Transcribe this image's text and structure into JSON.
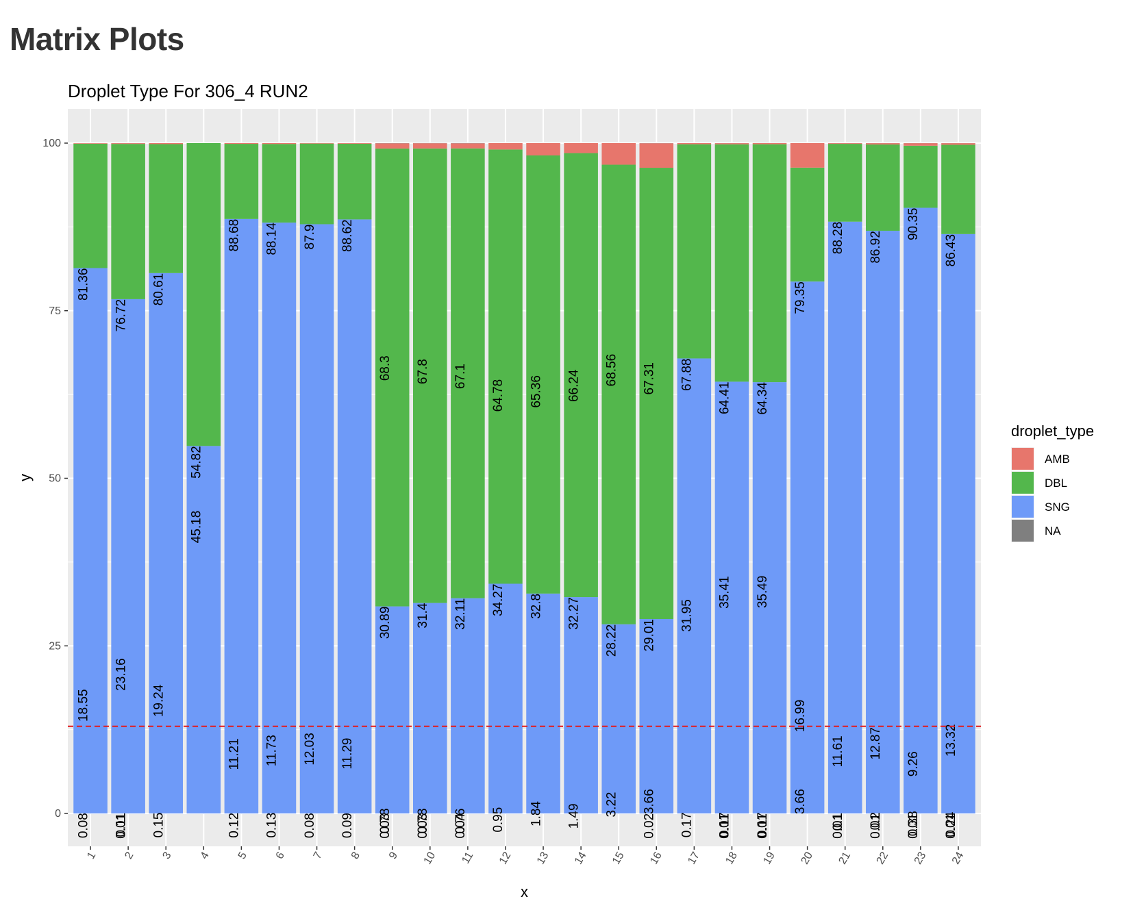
{
  "page": {
    "title": "Matrix Plots"
  },
  "chart_data": {
    "type": "bar",
    "stacked": true,
    "title": "Droplet Type For 306_4 RUN2",
    "xlabel": "x",
    "ylabel": "y",
    "ylim": [
      0,
      100
    ],
    "yticks": [
      0,
      25,
      50,
      75,
      100
    ],
    "grid": true,
    "legend": {
      "title": "droplet_type",
      "position": "right"
    },
    "categories": [
      "1",
      "2",
      "3",
      "4",
      "5",
      "6",
      "7",
      "8",
      "9",
      "10",
      "11",
      "12",
      "13",
      "14",
      "15",
      "16",
      "17",
      "18",
      "19",
      "20",
      "21",
      "22",
      "23",
      "24"
    ],
    "series": [
      {
        "name": "SNG",
        "color": "#6E9AF8",
        "values": [
          81.36,
          76.72,
          80.61,
          54.82,
          88.68,
          88.14,
          87.9,
          88.62,
          30.89,
          31.4,
          32.11,
          34.27,
          32.8,
          32.27,
          28.22,
          29.01,
          67.88,
          64.41,
          64.34,
          79.35,
          88.28,
          86.92,
          90.35,
          86.43
        ]
      },
      {
        "name": "DBL",
        "color": "#53B74C",
        "values": [
          18.55,
          23.16,
          19.24,
          45.18,
          11.21,
          11.73,
          12.03,
          11.29,
          68.3,
          67.8,
          67.1,
          64.78,
          65.36,
          66.24,
          68.56,
          67.31,
          31.95,
          35.41,
          35.49,
          16.99,
          11.61,
          12.87,
          9.26,
          13.32
        ]
      },
      {
        "name": "AMB",
        "color": "#E7766C",
        "values": [
          0.08,
          0.11,
          0.15,
          0,
          0.12,
          0.13,
          0.08,
          0.09,
          0.78,
          0.78,
          0.76,
          0.95,
          1.84,
          1.49,
          3.22,
          3.66,
          0.17,
          0.17,
          0.17,
          3.66,
          0.1,
          0.2,
          0.38,
          0.24
        ]
      },
      {
        "name": "NA",
        "color": "#7F7F7F",
        "values": [
          0,
          0.01,
          0,
          0,
          0,
          0,
          0,
          0,
          0.03,
          0.03,
          0.04,
          0,
          0,
          0,
          0,
          0.02,
          0,
          0.01,
          0.01,
          0,
          0.01,
          0.01,
          0.01,
          0.01
        ]
      }
    ],
    "label_lines": [
      [
        "81.36",
        "18.55",
        "0.08"
      ],
      [
        "76.72",
        "23.16",
        "0.11",
        "0.01"
      ],
      [
        "80.61",
        "19.24",
        "0.15"
      ],
      [
        "54.82",
        "45.18"
      ],
      [
        "88.68",
        "11.21",
        "0.12"
      ],
      [
        "88.14",
        "11.73",
        "0.13"
      ],
      [
        "87.9",
        "12.03",
        "0.08"
      ],
      [
        "88.62",
        "11.29",
        "0.09"
      ],
      [
        "68.3",
        "30.89",
        "0.78",
        "0.03"
      ],
      [
        "67.8",
        "31.4",
        "0.78",
        "0.03"
      ],
      [
        "67.1",
        "32.11",
        "0.76",
        "0.04"
      ],
      [
        "64.78",
        "34.27",
        "0.95"
      ],
      [
        "65.36",
        "32.8",
        "1.84"
      ],
      [
        "66.24",
        "32.27",
        "1.49"
      ],
      [
        "68.56",
        "28.22",
        "3.22"
      ],
      [
        "67.31",
        "29.01",
        "3.66",
        "0.02"
      ],
      [
        "67.88",
        "31.95",
        "0.17"
      ],
      [
        "64.41",
        "35.41",
        "0.17",
        "0.01"
      ],
      [
        "64.34",
        "35.49",
        "0.17",
        "0.01"
      ],
      [
        "79.35",
        "16.99",
        "3.66"
      ],
      [
        "88.28",
        "11.61",
        "0.1",
        "0.01"
      ],
      [
        "86.92",
        "12.87",
        "0.2",
        "0.01"
      ],
      [
        "90.35",
        "9.26",
        "0.38",
        "0.01"
      ],
      [
        "86.43",
        "13.32",
        "0.24",
        "0.01"
      ]
    ],
    "reference_line": {
      "y": 13,
      "color": "#E41A1C",
      "style": "dashed"
    },
    "panel_background": "#EBEBEB",
    "grid_color": "#FFFFFF"
  }
}
